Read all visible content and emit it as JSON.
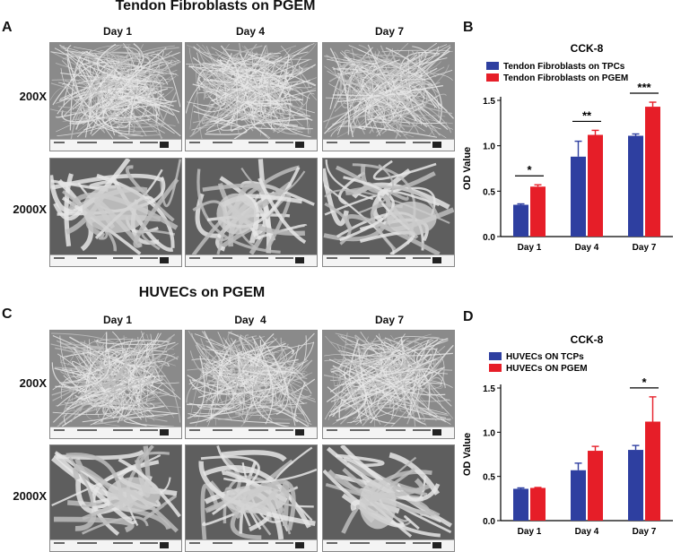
{
  "panel_a": {
    "letter": "A",
    "title": "Tendon Fibroblasts on PGEM",
    "columns": [
      "Day 1",
      "Day 4",
      "Day 7"
    ],
    "rows": [
      "200X",
      "2000X"
    ]
  },
  "panel_c": {
    "letter": "C",
    "title": "HUVECs on PGEM",
    "columns": [
      "Day 1",
      "Day  4",
      "Day 7"
    ],
    "rows": [
      "200X",
      "2000X"
    ]
  },
  "panel_b": {
    "letter": "B"
  },
  "panel_d": {
    "letter": "D"
  },
  "colors": {
    "tcp": "#2e3fa0",
    "pgem": "#e61e28"
  },
  "chart_data": [
    {
      "type": "bar",
      "title": "CCK-8",
      "ylabel": "OD Value",
      "xlabel": "",
      "categories": [
        "Day 1",
        "Day 4",
        "Day 7"
      ],
      "ylim": [
        0,
        1.5
      ],
      "yticks": [
        "0.0",
        "0.5",
        "1.0",
        "1.5"
      ],
      "legend_position": "top-left",
      "series": [
        {
          "name": "Tendon Fibroblasts on TPCs",
          "color": "#2e3fa0",
          "values": [
            0.35,
            0.88,
            1.11
          ],
          "errors": [
            0.01,
            0.17,
            0.02
          ]
        },
        {
          "name": "Tendon Fibroblasts on PGEM",
          "color": "#e61e28",
          "values": [
            0.55,
            1.12,
            1.43
          ],
          "errors": [
            0.02,
            0.05,
            0.05
          ]
        }
      ],
      "significance": [
        "*",
        "**",
        "***"
      ]
    },
    {
      "type": "bar",
      "title": "CCK-8",
      "ylabel": "OD Value",
      "xlabel": "",
      "categories": [
        "Day 1",
        "Day 4",
        "Day 7"
      ],
      "ylim": [
        0,
        1.5
      ],
      "yticks": [
        "0.0",
        "0.5",
        "1.0",
        "1.5"
      ],
      "legend_position": "top-left",
      "series": [
        {
          "name": "HUVECs ON TCPs",
          "color": "#2e3fa0",
          "values": [
            0.36,
            0.57,
            0.8
          ],
          "errors": [
            0.01,
            0.08,
            0.05
          ]
        },
        {
          "name": "HUVECs ON PGEM",
          "color": "#e61e28",
          "values": [
            0.37,
            0.79,
            1.12
          ],
          "errors": [
            0.005,
            0.05,
            0.28
          ]
        }
      ],
      "significance": [
        "",
        "",
        "*"
      ]
    }
  ]
}
